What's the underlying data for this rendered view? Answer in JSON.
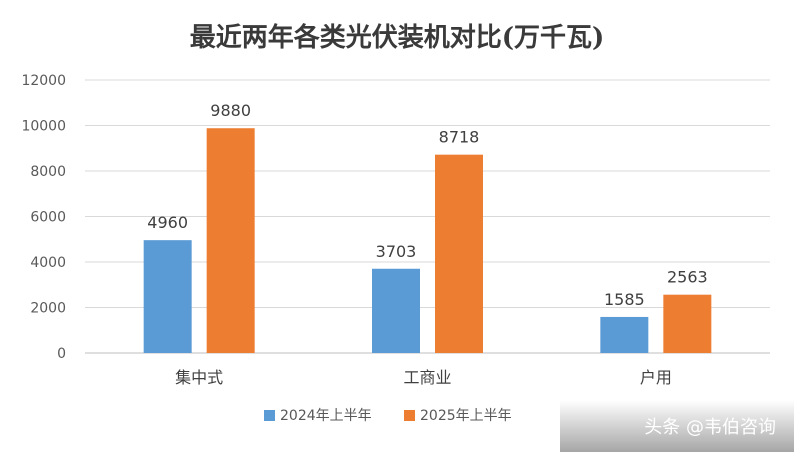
{
  "chart_data": {
    "type": "bar",
    "title": "最近两年各类光伏装机对比(万千瓦)",
    "categories": [
      "集中式",
      "工商业",
      "户用"
    ],
    "series": [
      {
        "name": "2024年上半年",
        "values": [
          4960,
          3703,
          1585
        ],
        "color": "#5b9bd5"
      },
      {
        "name": "2025年上半年",
        "values": [
          9880,
          8718,
          2563
        ],
        "color": "#ed7d31"
      }
    ],
    "ylim": [
      0,
      12000
    ],
    "yticks": [
      0,
      2000,
      4000,
      6000,
      8000,
      10000,
      12000
    ],
    "grid": true,
    "legend": "bottom",
    "data_labels": true
  },
  "watermark": {
    "text": "头条 @韦伯咨询"
  },
  "colors": {
    "gridline": "#d9d9d9",
    "axis": "#bfbfbf"
  }
}
